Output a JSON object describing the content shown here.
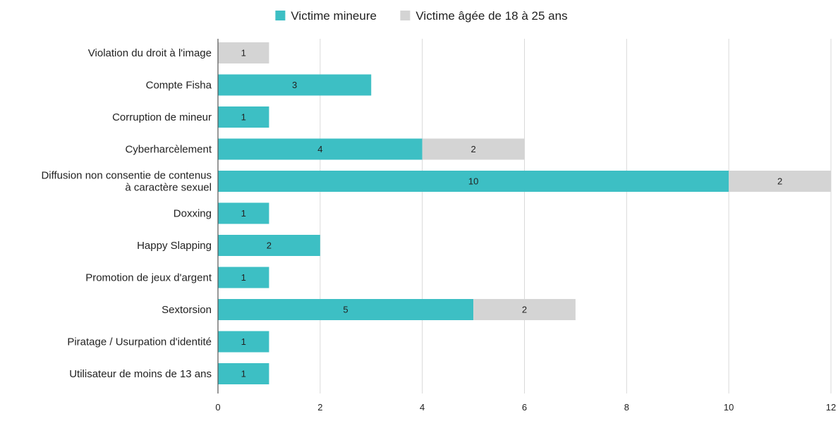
{
  "chart_data": {
    "type": "bar",
    "orientation": "horizontal",
    "stacked": true,
    "title": "",
    "xlabel": "",
    "ylabel": "",
    "xlim": [
      0,
      12
    ],
    "x_ticks": [
      0,
      2,
      4,
      6,
      8,
      10,
      12
    ],
    "grid": true,
    "legend_position": "top-center",
    "categories": [
      "Violation du droit à l'image",
      "Compte Fisha",
      "Corruption de mineur",
      "Cyberharcèlement",
      "Diffusion non consentie de contenus\nà caractère sexuel",
      "Doxxing",
      "Happy Slapping",
      "Promotion de jeux d'argent",
      "Sextorsion",
      "Piratage / Usurpation d'identité",
      "Utilisateur de moins de 13 ans"
    ],
    "series": [
      {
        "name": "Victime mineure",
        "color": "#3dbfc4",
        "values": [
          0,
          3,
          1,
          4,
          10,
          1,
          2,
          1,
          5,
          1,
          1
        ]
      },
      {
        "name": "Victime âgée de 18 à 25 ans",
        "color": "#d4d4d4",
        "values": [
          1,
          0,
          0,
          2,
          2,
          0,
          0,
          0,
          2,
          0,
          0
        ]
      }
    ]
  }
}
